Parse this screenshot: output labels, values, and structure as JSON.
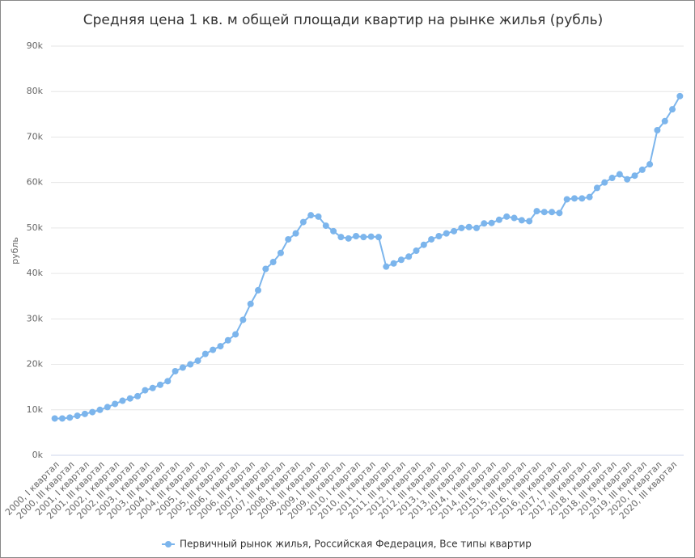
{
  "chart_data": {
    "type": "line",
    "title": "Средняя цена 1 кв. м общей площади квартир на рынке жилья (рубль)",
    "y_label": "рубль",
    "categories": [
      "2000, I квартал",
      null,
      "2000, III квартал",
      null,
      "2001, I квартал",
      null,
      "2001, III квартал",
      null,
      "2002, I квартал",
      null,
      "2002, III квартал",
      null,
      "2003, I квартал",
      null,
      "2003, III квартал",
      null,
      "2004, I квартал",
      null,
      "2004, III квартал",
      null,
      "2005, I квартал",
      null,
      "2005, III квартал",
      null,
      "2006, I квартал",
      null,
      "2006, III квартал",
      null,
      "2007, I квартал",
      null,
      "2007, III квартал",
      null,
      "2008, I квартал",
      null,
      "2008, III квартал",
      null,
      "2009, I квартал",
      null,
      "2009, III квартал",
      null,
      "2010, I квартал",
      null,
      "2010, III квартал",
      null,
      "2011, I квартал",
      null,
      "2011, III квартал",
      null,
      "2012, I квартал",
      null,
      "2012, III квартал",
      null,
      "2013, I квартал",
      null,
      "2013, III квартал",
      null,
      "2014, I квартал",
      null,
      "2014, III квартал",
      null,
      "2015, I квартал",
      null,
      "2015, III квартал",
      null,
      "2016, I квартал",
      null,
      "2016, III квартал",
      null,
      "2017, I квартал",
      null,
      "2017, III квартал",
      null,
      "2018, I квартал",
      null,
      "2018, III квартал",
      null,
      "2019, I квартал",
      null,
      "2019, III квартал",
      null,
      "2020, I квартал",
      null,
      "2020, III квартал",
      null
    ],
    "series": [
      {
        "name": "Первичный рынок жилья, Российская Федерация, Все типы квартир",
        "color": "#7cb5ec",
        "values": [
          8100,
          8100,
          8300,
          8700,
          9100,
          9500,
          10000,
          10600,
          11300,
          12000,
          12500,
          13000,
          14300,
          14800,
          15500,
          16300,
          18500,
          19300,
          20000,
          20800,
          22300,
          23200,
          24000,
          25300,
          26600,
          29800,
          33300,
          36300,
          41000,
          42500,
          44500,
          47500,
          48800,
          51300,
          52800,
          52500,
          50500,
          49300,
          48000,
          47700,
          48200,
          48000,
          48100,
          48000,
          41500,
          42200,
          43000,
          43700,
          45000,
          46300,
          47500,
          48200,
          48800,
          49300,
          50000,
          50200,
          50000,
          51000,
          51100,
          51800,
          52500,
          52200,
          51700,
          51500,
          53700,
          53500,
          53500,
          53300,
          56300,
          56500,
          56500,
          56800,
          58800,
          60000,
          61000,
          61800,
          60700,
          61500,
          62800,
          64000,
          71500,
          73500,
          76100,
          79000
        ]
      }
    ],
    "ylim": [
      0,
      90000
    ],
    "yticks": [
      {
        "value": 0,
        "label": "0k"
      },
      {
        "value": 10000,
        "label": "10k"
      },
      {
        "value": 20000,
        "label": "20k"
      },
      {
        "value": 30000,
        "label": "30k"
      },
      {
        "value": 40000,
        "label": "40k"
      },
      {
        "value": 50000,
        "label": "50k"
      },
      {
        "value": 60000,
        "label": "60k"
      },
      {
        "value": 70000,
        "label": "70k"
      },
      {
        "value": 80000,
        "label": "80k"
      },
      {
        "value": 90000,
        "label": "90k"
      }
    ],
    "grid": true
  }
}
